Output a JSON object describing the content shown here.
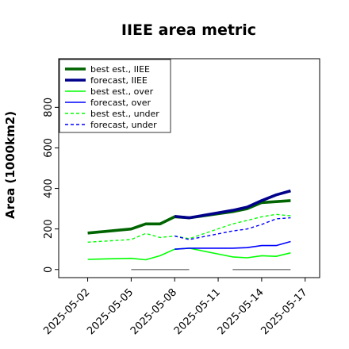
{
  "chart_data": {
    "type": "line",
    "title": "IIEE area metric",
    "xlabel": "",
    "ylabel": "Area (1000km2)",
    "x_ticks": [
      "2025-05-02",
      "2025-05-05",
      "2025-05-08",
      "2025-05-11",
      "2025-05-14",
      "2025-05-17"
    ],
    "highlighted_tick": "2025-05-08",
    "highlight_color": "#228b22",
    "xlim": [
      "2025-04-30",
      "2025-05-18"
    ],
    "y_ticks": [
      0,
      200,
      400,
      600,
      800
    ],
    "ylim": [
      -40,
      1040
    ],
    "grid": false,
    "legend_location": "top-left",
    "series": [
      {
        "name": "best est., IIEE",
        "color": "#006400",
        "style": "thick-solid",
        "points": [
          [
            "2025-05-02",
            180
          ],
          [
            "2025-05-05",
            200
          ],
          [
            "2025-05-06",
            225
          ],
          [
            "2025-05-07",
            225
          ],
          [
            "2025-05-08",
            260
          ],
          [
            "2025-05-09",
            255
          ],
          [
            "2025-05-12",
            285
          ],
          [
            "2025-05-13",
            300
          ],
          [
            "2025-05-14",
            330
          ],
          [
            "2025-05-15",
            335
          ],
          [
            "2025-05-16",
            340
          ]
        ]
      },
      {
        "name": "forecast, IIEE",
        "color": "#00008b",
        "style": "thick-solid",
        "points": [
          [
            "2025-05-08",
            262
          ],
          [
            "2025-05-09",
            255
          ],
          [
            "2025-05-12",
            292
          ],
          [
            "2025-05-13",
            308
          ],
          [
            "2025-05-14",
            340
          ],
          [
            "2025-05-15",
            368
          ],
          [
            "2025-05-16",
            388
          ]
        ]
      },
      {
        "name": "best est., over",
        "color": "#00ff00",
        "style": "solid",
        "points": [
          [
            "2025-05-02",
            50
          ],
          [
            "2025-05-05",
            55
          ],
          [
            "2025-05-06",
            48
          ],
          [
            "2025-05-07",
            68
          ],
          [
            "2025-05-08",
            100
          ],
          [
            "2025-05-09",
            105
          ],
          [
            "2025-05-12",
            62
          ],
          [
            "2025-05-13",
            58
          ],
          [
            "2025-05-14",
            68
          ],
          [
            "2025-05-15",
            65
          ],
          [
            "2025-05-16",
            82
          ]
        ]
      },
      {
        "name": "forecast, over",
        "color": "#0000ff",
        "style": "solid",
        "points": [
          [
            "2025-05-08",
            100
          ],
          [
            "2025-05-09",
            105
          ],
          [
            "2025-05-12",
            105
          ],
          [
            "2025-05-13",
            108
          ],
          [
            "2025-05-14",
            118
          ],
          [
            "2025-05-15",
            118
          ],
          [
            "2025-05-16",
            138
          ]
        ]
      },
      {
        "name": "best est., under",
        "color": "#00ff00",
        "style": "dashed",
        "points": [
          [
            "2025-05-02",
            135
          ],
          [
            "2025-05-05",
            148
          ],
          [
            "2025-05-06",
            178
          ],
          [
            "2025-05-07",
            158
          ],
          [
            "2025-05-08",
            165
          ],
          [
            "2025-05-09",
            152
          ],
          [
            "2025-05-12",
            225
          ],
          [
            "2025-05-13",
            242
          ],
          [
            "2025-05-14",
            260
          ],
          [
            "2025-05-15",
            272
          ],
          [
            "2025-05-16",
            265
          ]
        ]
      },
      {
        "name": "forecast, under",
        "color": "#0000ff",
        "style": "dashed",
        "points": [
          [
            "2025-05-08",
            165
          ],
          [
            "2025-05-09",
            148
          ],
          [
            "2025-05-12",
            190
          ],
          [
            "2025-05-13",
            200
          ],
          [
            "2025-05-14",
            222
          ],
          [
            "2025-05-15",
            250
          ],
          [
            "2025-05-16",
            255
          ]
        ]
      },
      {
        "name": "",
        "color": "#888888",
        "style": "hairline",
        "points": [
          [
            "2025-05-05",
            0
          ],
          [
            "2025-05-09",
            0
          ]
        ]
      },
      {
        "name": "",
        "color": "#888888",
        "style": "hairline",
        "points": [
          [
            "2025-05-12",
            0
          ],
          [
            "2025-05-16",
            0
          ]
        ]
      }
    ]
  }
}
